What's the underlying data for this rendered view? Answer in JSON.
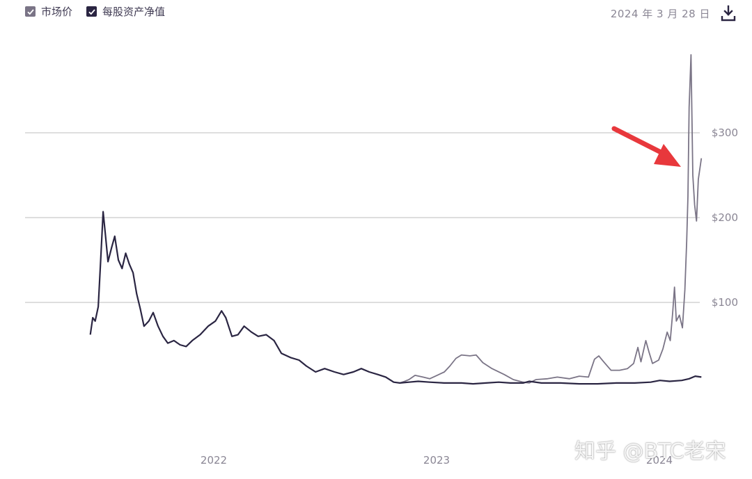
{
  "legend": {
    "items": [
      {
        "label": "市场价",
        "color": "#7a7486"
      },
      {
        "label": "每股资产净值",
        "color": "#2a2542"
      }
    ]
  },
  "date_text": "2024 年 3 月 28 日",
  "watermark": "知乎 @BTC老宋",
  "icons": {
    "download": "download-icon",
    "check": "check-icon",
    "annotation": "red-arrow"
  },
  "colors": {
    "grid": "#bdbdbd",
    "tick_text": "#8a8694",
    "arrow": "#e8383c"
  },
  "chart_data": {
    "type": "line",
    "title": "",
    "xlabel": "",
    "ylabel": "",
    "x_ticks": [
      "2022",
      "2023",
      "2024"
    ],
    "y_ticks": [
      "$100",
      "$200",
      "$300"
    ],
    "ylim": [
      -100,
      400
    ],
    "grid": true,
    "legend_placement": "top-left",
    "annotation": "red arrow pointing to the 2024 spike",
    "series": [
      {
        "name": "每股资产净值",
        "points": [
          [
            "2021-07-01",
            62
          ],
          [
            "2021-07-05",
            82
          ],
          [
            "2021-07-09",
            78
          ],
          [
            "2021-07-14",
            95
          ],
          [
            "2021-07-18",
            150
          ],
          [
            "2021-07-22",
            207
          ],
          [
            "2021-07-26",
            178
          ],
          [
            "2021-07-30",
            148
          ],
          [
            "2021-08-05",
            165
          ],
          [
            "2021-08-10",
            178
          ],
          [
            "2021-08-16",
            150
          ],
          [
            "2021-08-22",
            140
          ],
          [
            "2021-08-28",
            158
          ],
          [
            "2021-09-03",
            145
          ],
          [
            "2021-09-09",
            135
          ],
          [
            "2021-09-15",
            110
          ],
          [
            "2021-09-21",
            92
          ],
          [
            "2021-09-27",
            72
          ],
          [
            "2021-10-05",
            78
          ],
          [
            "2021-10-12",
            88
          ],
          [
            "2021-10-20",
            72
          ],
          [
            "2021-10-28",
            60
          ],
          [
            "2021-11-05",
            52
          ],
          [
            "2021-11-15",
            55
          ],
          [
            "2021-11-25",
            50
          ],
          [
            "2021-12-05",
            48
          ],
          [
            "2021-12-15",
            55
          ],
          [
            "2021-12-28",
            62
          ],
          [
            "2022-01-10",
            72
          ],
          [
            "2022-01-22",
            78
          ],
          [
            "2022-02-01",
            90
          ],
          [
            "2022-02-08",
            82
          ],
          [
            "2022-02-18",
            60
          ],
          [
            "2022-02-28",
            62
          ],
          [
            "2022-03-10",
            72
          ],
          [
            "2022-03-22",
            65
          ],
          [
            "2022-04-02",
            60
          ],
          [
            "2022-04-15",
            62
          ],
          [
            "2022-04-28",
            55
          ],
          [
            "2022-05-10",
            40
          ],
          [
            "2022-05-25",
            35
          ],
          [
            "2022-06-08",
            32
          ],
          [
            "2022-06-20",
            25
          ],
          [
            "2022-07-05",
            18
          ],
          [
            "2022-07-20",
            22
          ],
          [
            "2022-08-05",
            18
          ],
          [
            "2022-08-20",
            15
          ],
          [
            "2022-09-05",
            18
          ],
          [
            "2022-09-18",
            22
          ],
          [
            "2022-10-01",
            18
          ],
          [
            "2022-10-15",
            15
          ],
          [
            "2022-10-28",
            12
          ],
          [
            "2022-11-10",
            6
          ],
          [
            "2022-11-20",
            5
          ],
          [
            "2022-12-05",
            6
          ],
          [
            "2022-12-20",
            7
          ],
          [
            "2023-01-08",
            6
          ],
          [
            "2023-02-01",
            5
          ],
          [
            "2023-03-01",
            5
          ],
          [
            "2023-03-20",
            4
          ],
          [
            "2023-04-10",
            5
          ],
          [
            "2023-05-01",
            6
          ],
          [
            "2023-05-20",
            5
          ],
          [
            "2023-06-10",
            5
          ],
          [
            "2023-06-20",
            7
          ],
          [
            "2023-07-10",
            5
          ],
          [
            "2023-08-10",
            5
          ],
          [
            "2023-09-10",
            4
          ],
          [
            "2023-10-10",
            4
          ],
          [
            "2023-11-10",
            5
          ],
          [
            "2023-12-10",
            5
          ],
          [
            "2024-01-05",
            6
          ],
          [
            "2024-01-20",
            8
          ],
          [
            "2024-02-05",
            7
          ],
          [
            "2024-02-25",
            8
          ],
          [
            "2024-03-08",
            10
          ],
          [
            "2024-03-18",
            13
          ],
          [
            "2024-03-28",
            12
          ]
        ]
      },
      {
        "name": "市场价",
        "points": [
          [
            "2022-11-20",
            5
          ],
          [
            "2022-11-28",
            7
          ],
          [
            "2022-12-05",
            9
          ],
          [
            "2022-12-15",
            14
          ],
          [
            "2022-12-28",
            12
          ],
          [
            "2023-01-08",
            10
          ],
          [
            "2023-01-20",
            14
          ],
          [
            "2023-02-01",
            18
          ],
          [
            "2023-02-10",
            25
          ],
          [
            "2023-02-20",
            34
          ],
          [
            "2023-03-01",
            38
          ],
          [
            "2023-03-15",
            37
          ],
          [
            "2023-03-25",
            38
          ],
          [
            "2023-04-05",
            29
          ],
          [
            "2023-04-20",
            22
          ],
          [
            "2023-05-10",
            15
          ],
          [
            "2023-05-25",
            9
          ],
          [
            "2023-06-10",
            6
          ],
          [
            "2023-06-20",
            5
          ],
          [
            "2023-07-01",
            9
          ],
          [
            "2023-07-20",
            10
          ],
          [
            "2023-08-05",
            12
          ],
          [
            "2023-08-25",
            10
          ],
          [
            "2023-09-10",
            13
          ],
          [
            "2023-09-25",
            12
          ],
          [
            "2023-10-05",
            33
          ],
          [
            "2023-10-12",
            37
          ],
          [
            "2023-10-20",
            30
          ],
          [
            "2023-11-01",
            20
          ],
          [
            "2023-11-15",
            20
          ],
          [
            "2023-11-28",
            22
          ],
          [
            "2023-12-08",
            28
          ],
          [
            "2023-12-15",
            47
          ],
          [
            "2023-12-20",
            30
          ],
          [
            "2023-12-28",
            55
          ],
          [
            "2024-01-02",
            42
          ],
          [
            "2024-01-08",
            28
          ],
          [
            "2024-01-18",
            32
          ],
          [
            "2024-01-25",
            45
          ],
          [
            "2024-02-01",
            65
          ],
          [
            "2024-02-06",
            55
          ],
          [
            "2024-02-10",
            88
          ],
          [
            "2024-02-13",
            118
          ],
          [
            "2024-02-16",
            78
          ],
          [
            "2024-02-21",
            85
          ],
          [
            "2024-02-26",
            70
          ],
          [
            "2024-03-01",
            115
          ],
          [
            "2024-03-04",
            172
          ],
          [
            "2024-03-06",
            225
          ],
          [
            "2024-03-08",
            330
          ],
          [
            "2024-03-11",
            392
          ],
          [
            "2024-03-14",
            250
          ],
          [
            "2024-03-17",
            215
          ],
          [
            "2024-03-20",
            196
          ],
          [
            "2024-03-23",
            245
          ],
          [
            "2024-03-28",
            270
          ]
        ]
      }
    ]
  }
}
